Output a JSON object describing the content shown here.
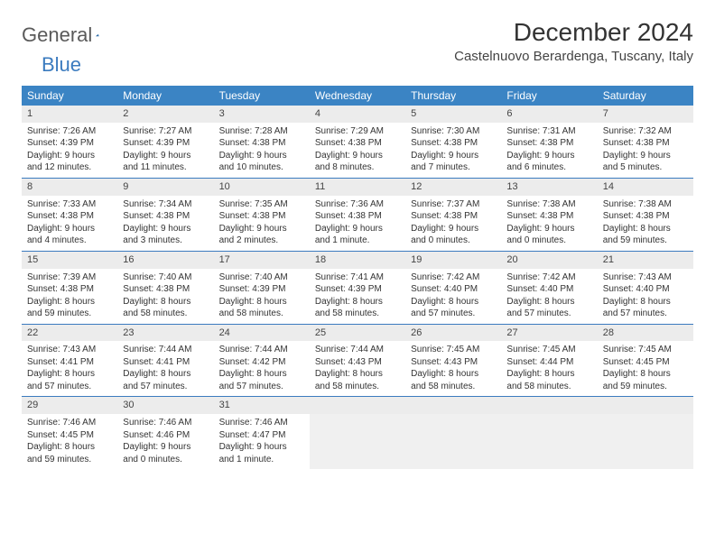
{
  "logo": {
    "text1": "General",
    "text2": "Blue"
  },
  "title": "December 2024",
  "location": "Castelnuovo Berardenga, Tuscany, Italy",
  "colors": {
    "header_bg": "#3b84c4",
    "header_text": "#ffffff",
    "daynum_bg": "#ececec",
    "week_border": "#3b7bbf",
    "logo_gray": "#5a5a5a",
    "logo_blue": "#3b7bbf",
    "body_text": "#333333",
    "empty_bg": "#f0f0f0"
  },
  "weekdays": [
    "Sunday",
    "Monday",
    "Tuesday",
    "Wednesday",
    "Thursday",
    "Friday",
    "Saturday"
  ],
  "weeks": [
    [
      {
        "day": "1",
        "sunrise": "Sunrise: 7:26 AM",
        "sunset": "Sunset: 4:39 PM",
        "daylight": "Daylight: 9 hours and 12 minutes."
      },
      {
        "day": "2",
        "sunrise": "Sunrise: 7:27 AM",
        "sunset": "Sunset: 4:39 PM",
        "daylight": "Daylight: 9 hours and 11 minutes."
      },
      {
        "day": "3",
        "sunrise": "Sunrise: 7:28 AM",
        "sunset": "Sunset: 4:38 PM",
        "daylight": "Daylight: 9 hours and 10 minutes."
      },
      {
        "day": "4",
        "sunrise": "Sunrise: 7:29 AM",
        "sunset": "Sunset: 4:38 PM",
        "daylight": "Daylight: 9 hours and 8 minutes."
      },
      {
        "day": "5",
        "sunrise": "Sunrise: 7:30 AM",
        "sunset": "Sunset: 4:38 PM",
        "daylight": "Daylight: 9 hours and 7 minutes."
      },
      {
        "day": "6",
        "sunrise": "Sunrise: 7:31 AM",
        "sunset": "Sunset: 4:38 PM",
        "daylight": "Daylight: 9 hours and 6 minutes."
      },
      {
        "day": "7",
        "sunrise": "Sunrise: 7:32 AM",
        "sunset": "Sunset: 4:38 PM",
        "daylight": "Daylight: 9 hours and 5 minutes."
      }
    ],
    [
      {
        "day": "8",
        "sunrise": "Sunrise: 7:33 AM",
        "sunset": "Sunset: 4:38 PM",
        "daylight": "Daylight: 9 hours and 4 minutes."
      },
      {
        "day": "9",
        "sunrise": "Sunrise: 7:34 AM",
        "sunset": "Sunset: 4:38 PM",
        "daylight": "Daylight: 9 hours and 3 minutes."
      },
      {
        "day": "10",
        "sunrise": "Sunrise: 7:35 AM",
        "sunset": "Sunset: 4:38 PM",
        "daylight": "Daylight: 9 hours and 2 minutes."
      },
      {
        "day": "11",
        "sunrise": "Sunrise: 7:36 AM",
        "sunset": "Sunset: 4:38 PM",
        "daylight": "Daylight: 9 hours and 1 minute."
      },
      {
        "day": "12",
        "sunrise": "Sunrise: 7:37 AM",
        "sunset": "Sunset: 4:38 PM",
        "daylight": "Daylight: 9 hours and 0 minutes."
      },
      {
        "day": "13",
        "sunrise": "Sunrise: 7:38 AM",
        "sunset": "Sunset: 4:38 PM",
        "daylight": "Daylight: 9 hours and 0 minutes."
      },
      {
        "day": "14",
        "sunrise": "Sunrise: 7:38 AM",
        "sunset": "Sunset: 4:38 PM",
        "daylight": "Daylight: 8 hours and 59 minutes."
      }
    ],
    [
      {
        "day": "15",
        "sunrise": "Sunrise: 7:39 AM",
        "sunset": "Sunset: 4:38 PM",
        "daylight": "Daylight: 8 hours and 59 minutes."
      },
      {
        "day": "16",
        "sunrise": "Sunrise: 7:40 AM",
        "sunset": "Sunset: 4:38 PM",
        "daylight": "Daylight: 8 hours and 58 minutes."
      },
      {
        "day": "17",
        "sunrise": "Sunrise: 7:40 AM",
        "sunset": "Sunset: 4:39 PM",
        "daylight": "Daylight: 8 hours and 58 minutes."
      },
      {
        "day": "18",
        "sunrise": "Sunrise: 7:41 AM",
        "sunset": "Sunset: 4:39 PM",
        "daylight": "Daylight: 8 hours and 58 minutes."
      },
      {
        "day": "19",
        "sunrise": "Sunrise: 7:42 AM",
        "sunset": "Sunset: 4:40 PM",
        "daylight": "Daylight: 8 hours and 57 minutes."
      },
      {
        "day": "20",
        "sunrise": "Sunrise: 7:42 AM",
        "sunset": "Sunset: 4:40 PM",
        "daylight": "Daylight: 8 hours and 57 minutes."
      },
      {
        "day": "21",
        "sunrise": "Sunrise: 7:43 AM",
        "sunset": "Sunset: 4:40 PM",
        "daylight": "Daylight: 8 hours and 57 minutes."
      }
    ],
    [
      {
        "day": "22",
        "sunrise": "Sunrise: 7:43 AM",
        "sunset": "Sunset: 4:41 PM",
        "daylight": "Daylight: 8 hours and 57 minutes."
      },
      {
        "day": "23",
        "sunrise": "Sunrise: 7:44 AM",
        "sunset": "Sunset: 4:41 PM",
        "daylight": "Daylight: 8 hours and 57 minutes."
      },
      {
        "day": "24",
        "sunrise": "Sunrise: 7:44 AM",
        "sunset": "Sunset: 4:42 PM",
        "daylight": "Daylight: 8 hours and 57 minutes."
      },
      {
        "day": "25",
        "sunrise": "Sunrise: 7:44 AM",
        "sunset": "Sunset: 4:43 PM",
        "daylight": "Daylight: 8 hours and 58 minutes."
      },
      {
        "day": "26",
        "sunrise": "Sunrise: 7:45 AM",
        "sunset": "Sunset: 4:43 PM",
        "daylight": "Daylight: 8 hours and 58 minutes."
      },
      {
        "day": "27",
        "sunrise": "Sunrise: 7:45 AM",
        "sunset": "Sunset: 4:44 PM",
        "daylight": "Daylight: 8 hours and 58 minutes."
      },
      {
        "day": "28",
        "sunrise": "Sunrise: 7:45 AM",
        "sunset": "Sunset: 4:45 PM",
        "daylight": "Daylight: 8 hours and 59 minutes."
      }
    ],
    [
      {
        "day": "29",
        "sunrise": "Sunrise: 7:46 AM",
        "sunset": "Sunset: 4:45 PM",
        "daylight": "Daylight: 8 hours and 59 minutes."
      },
      {
        "day": "30",
        "sunrise": "Sunrise: 7:46 AM",
        "sunset": "Sunset: 4:46 PM",
        "daylight": "Daylight: 9 hours and 0 minutes."
      },
      {
        "day": "31",
        "sunrise": "Sunrise: 7:46 AM",
        "sunset": "Sunset: 4:47 PM",
        "daylight": "Daylight: 9 hours and 1 minute."
      },
      null,
      null,
      null,
      null
    ]
  ]
}
